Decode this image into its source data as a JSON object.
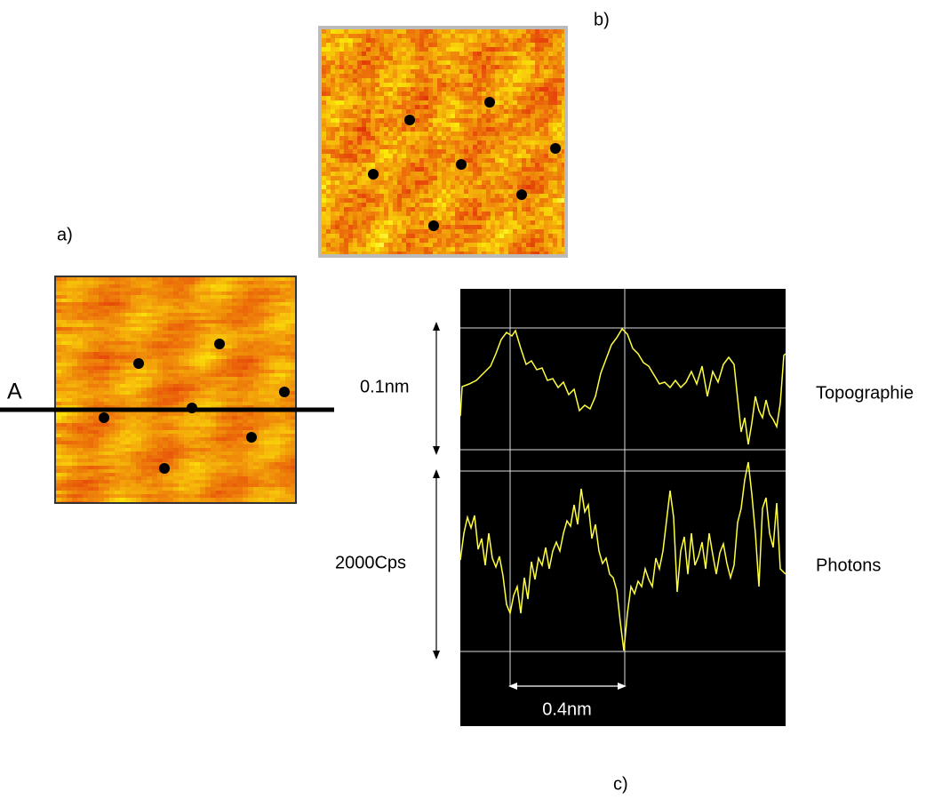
{
  "panels": {
    "a": "a)",
    "b": "b)",
    "c": "c)"
  },
  "line_label": "A",
  "scales": {
    "height": "0.1nm",
    "count_rate": "2000Cps",
    "distance": "0.4nm"
  },
  "traces": {
    "topography": "Topographie",
    "photons": "Photons"
  }
}
